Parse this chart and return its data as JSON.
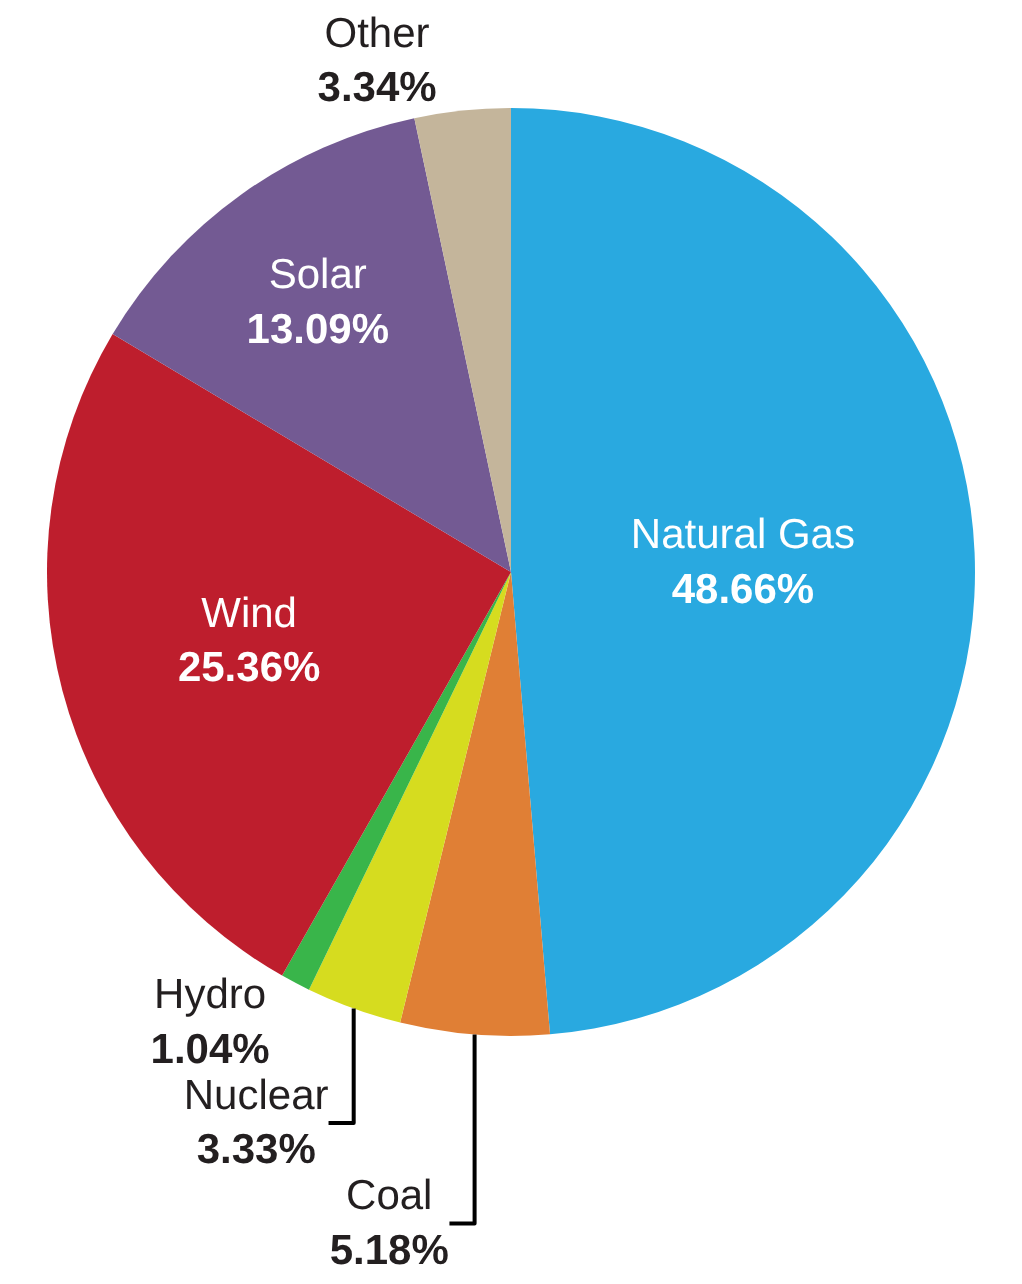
{
  "chart_data": {
    "type": "pie",
    "categories": [
      "Natural Gas",
      "Coal",
      "Nuclear",
      "Hydro",
      "Wind",
      "Solar",
      "Other"
    ],
    "values": [
      48.66,
      5.18,
      3.33,
      1.04,
      25.36,
      13.09,
      3.34
    ],
    "value_labels": [
      "48.66%",
      "5.18%",
      "3.33%",
      "1.04%",
      "25.36%",
      "13.09%",
      "3.34%"
    ],
    "colors": [
      "#29a9e0",
      "#e07f35",
      "#d6dc1f",
      "#39b54a",
      "#be1e2d",
      "#735a93",
      "#c4b59b"
    ],
    "legend": false
  }
}
